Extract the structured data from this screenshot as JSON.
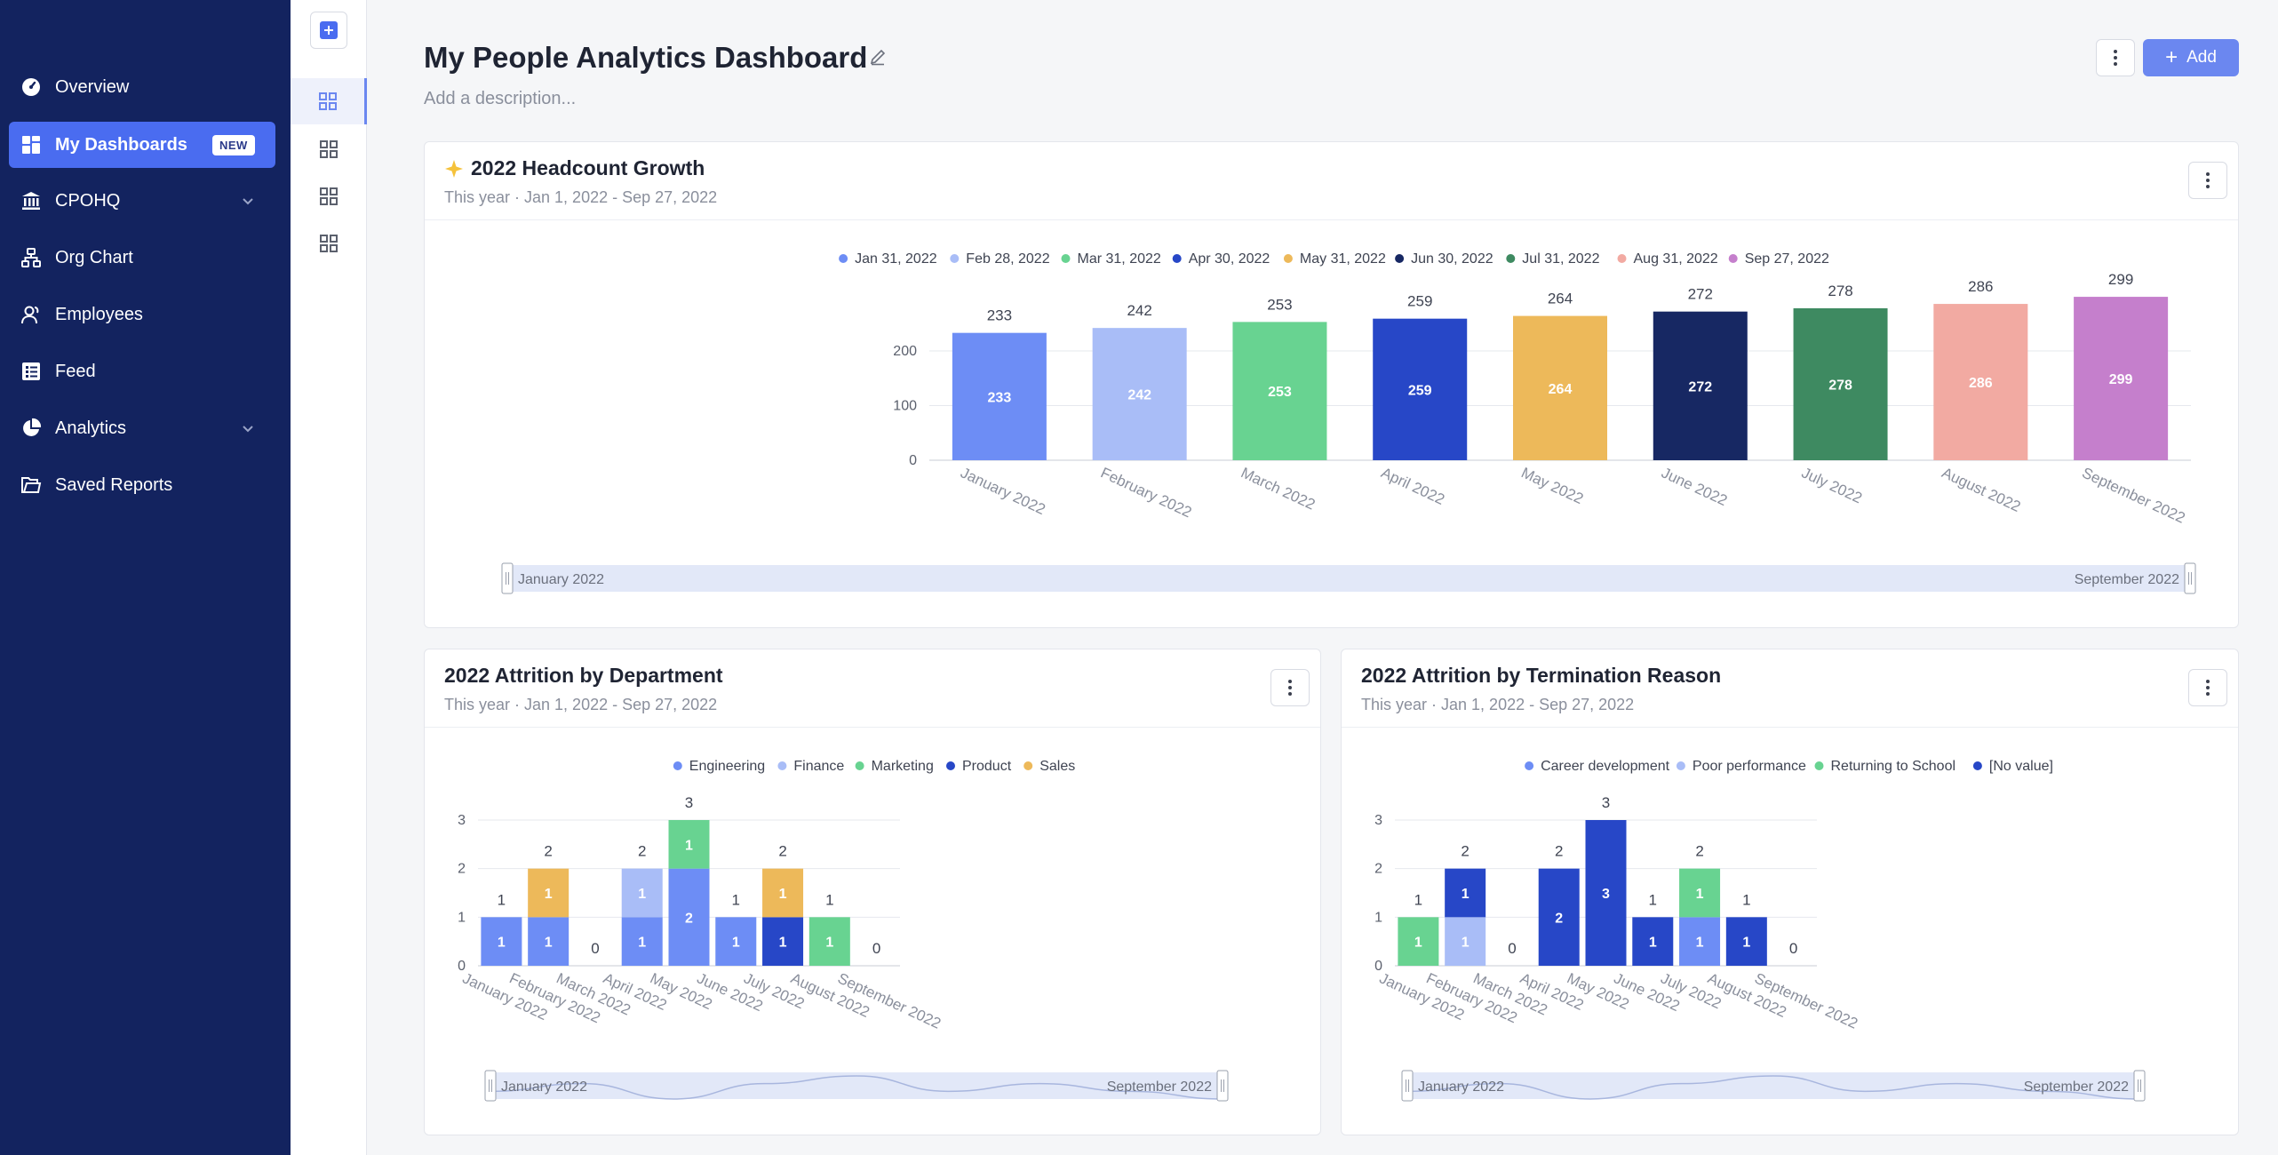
{
  "sidebar": {
    "items": [
      {
        "label": "Overview",
        "icon": "gauge-icon"
      },
      {
        "label": "My Dashboards",
        "icon": "grid-icon",
        "badge": "NEW"
      },
      {
        "label": "CPOHQ",
        "icon": "bank-icon"
      },
      {
        "label": "Org Chart",
        "icon": "org-chart-icon"
      },
      {
        "label": "Employees",
        "icon": "employees-icon"
      },
      {
        "label": "Feed",
        "icon": "feed-icon"
      },
      {
        "label": "Analytics",
        "icon": "pie-chart-icon"
      },
      {
        "label": "Saved Reports",
        "icon": "folder-icon"
      }
    ]
  },
  "header": {
    "title": "My People Analytics Dashboard",
    "description_placeholder": "Add a description...",
    "add_label": "Add"
  },
  "colors": {
    "sidebar_bg": "#13235f",
    "accent": "#6b87f0",
    "active_nav": "#4a6cf0"
  },
  "cards": [
    {
      "title": "2022 Headcount Growth",
      "subtitle": "This year · Jan 1, 2022 - Sep 27, 2022",
      "range_start": "January 2022",
      "range_end": "September 2022"
    },
    {
      "title": "2022 Attrition by Department",
      "subtitle": "This year · Jan 1, 2022 - Sep 27, 2022",
      "range_start": "January 2022",
      "range_end": "September 2022"
    },
    {
      "title": "2022 Attrition by Termination Reason",
      "subtitle": "This year · Jan 1, 2022 - Sep 27, 2022",
      "range_start": "January 2022",
      "range_end": "September 2022"
    }
  ],
  "chart_data": [
    {
      "type": "bar",
      "categories": [
        "January 2022",
        "February 2022",
        "March 2022",
        "April 2022",
        "May 2022",
        "June 2022",
        "July 2022",
        "August 2022",
        "September 2022"
      ],
      "values": [
        233,
        242,
        253,
        259,
        264,
        272,
        278,
        286,
        299
      ],
      "legend": [
        "Jan 31, 2022",
        "Feb 28, 2022",
        "Mar 31, 2022",
        "Apr 30, 2022",
        "May 31, 2022",
        "Jun 30, 2022",
        "Jul 31, 2022",
        "Aug 31, 2022",
        "Sep 27, 2022"
      ],
      "colors": [
        "#6d8df5",
        "#a9bdf7",
        "#68d391",
        "#2747c7",
        "#edb95a",
        "#172863",
        "#3e8a61",
        "#f2aaa2",
        "#c57fcc"
      ],
      "yticks": [
        0,
        100,
        200
      ],
      "ylim": [
        0,
        330
      ],
      "legend_position": "top-center",
      "grid": true
    },
    {
      "type": "bar",
      "stacked": true,
      "categories": [
        "January 2022",
        "February 2022",
        "March 2022",
        "April 2022",
        "May 2022",
        "June 2022",
        "July 2022",
        "August 2022",
        "September 2022"
      ],
      "series": [
        {
          "name": "Engineering",
          "color": "#6d8df5",
          "values": [
            1,
            1,
            0,
            1,
            2,
            1,
            0,
            0,
            0
          ]
        },
        {
          "name": "Finance",
          "color": "#a9bdf7",
          "values": [
            0,
            0,
            0,
            1,
            0,
            0,
            0,
            0,
            0
          ]
        },
        {
          "name": "Marketing",
          "color": "#68d391",
          "values": [
            0,
            0,
            0,
            0,
            1,
            0,
            0,
            1,
            0
          ]
        },
        {
          "name": "Product",
          "color": "#2747c7",
          "values": [
            0,
            0,
            0,
            0,
            0,
            0,
            1,
            0,
            0
          ]
        },
        {
          "name": "Sales",
          "color": "#edb95a",
          "values": [
            0,
            1,
            0,
            0,
            0,
            0,
            1,
            0,
            0
          ]
        }
      ],
      "totals": [
        1,
        2,
        0,
        2,
        3,
        1,
        2,
        1,
        0
      ],
      "yticks": [
        0,
        1,
        2,
        3
      ],
      "ylim": [
        0,
        3
      ],
      "legend_position": "top-center",
      "grid": true
    },
    {
      "type": "bar",
      "stacked": true,
      "categories": [
        "January 2022",
        "February 2022",
        "March 2022",
        "April 2022",
        "May 2022",
        "June 2022",
        "July 2022",
        "August 2022",
        "September 2022"
      ],
      "series": [
        {
          "name": "Career development",
          "color": "#6d8df5",
          "values": [
            0,
            0,
            0,
            0,
            0,
            0,
            1,
            0,
            0
          ]
        },
        {
          "name": "Poor performance",
          "color": "#a9bdf7",
          "values": [
            0,
            1,
            0,
            0,
            0,
            0,
            0,
            0,
            0
          ]
        },
        {
          "name": "Returning to School",
          "color": "#68d391",
          "values": [
            1,
            0,
            0,
            0,
            0,
            0,
            1,
            0,
            0
          ]
        },
        {
          "name": "[No value]",
          "color": "#2747c7",
          "values": [
            0,
            1,
            0,
            2,
            3,
            1,
            0,
            1,
            0
          ]
        }
      ],
      "totals": [
        1,
        2,
        0,
        2,
        3,
        1,
        2,
        1,
        0
      ],
      "yticks": [
        0,
        1,
        2,
        3
      ],
      "ylim": [
        0,
        3
      ],
      "legend_position": "top-center",
      "grid": true
    }
  ]
}
